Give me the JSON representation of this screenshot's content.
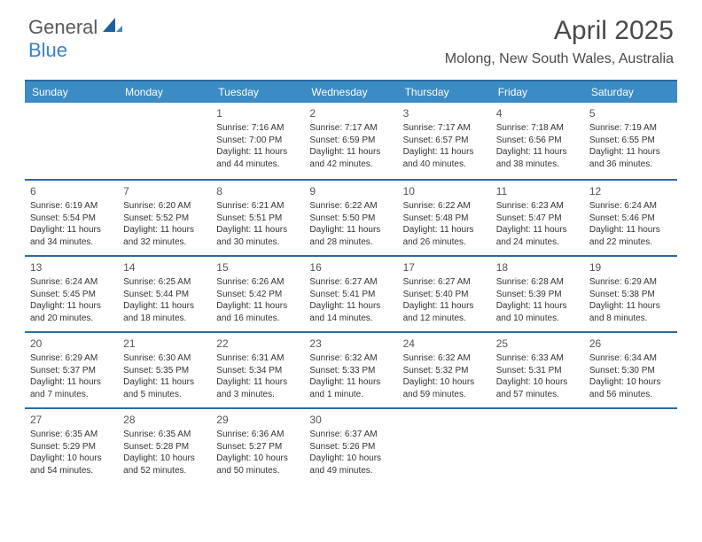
{
  "brand": {
    "part1": "General",
    "part2": "Blue"
  },
  "title": "April 2025",
  "location": "Molong, New South Wales, Australia",
  "colors": {
    "header_bg": "#3b8bc4",
    "rule": "#2d6aa3",
    "brand_gray": "#5a5a5a",
    "brand_blue": "#3b82c4",
    "text": "#333333"
  },
  "fonts": {
    "title_size": 30,
    "location_size": 16,
    "dow_size": 12,
    "daynum_size": 12,
    "body_size": 10
  },
  "days_of_week": [
    "Sunday",
    "Monday",
    "Tuesday",
    "Wednesday",
    "Thursday",
    "Friday",
    "Saturday"
  ],
  "weeks": [
    [
      null,
      null,
      {
        "n": "1",
        "sr": "Sunrise: 7:16 AM",
        "ss": "Sunset: 7:00 PM",
        "d1": "Daylight: 11 hours",
        "d2": "and 44 minutes."
      },
      {
        "n": "2",
        "sr": "Sunrise: 7:17 AM",
        "ss": "Sunset: 6:59 PM",
        "d1": "Daylight: 11 hours",
        "d2": "and 42 minutes."
      },
      {
        "n": "3",
        "sr": "Sunrise: 7:17 AM",
        "ss": "Sunset: 6:57 PM",
        "d1": "Daylight: 11 hours",
        "d2": "and 40 minutes."
      },
      {
        "n": "4",
        "sr": "Sunrise: 7:18 AM",
        "ss": "Sunset: 6:56 PM",
        "d1": "Daylight: 11 hours",
        "d2": "and 38 minutes."
      },
      {
        "n": "5",
        "sr": "Sunrise: 7:19 AM",
        "ss": "Sunset: 6:55 PM",
        "d1": "Daylight: 11 hours",
        "d2": "and 36 minutes."
      }
    ],
    [
      {
        "n": "6",
        "sr": "Sunrise: 6:19 AM",
        "ss": "Sunset: 5:54 PM",
        "d1": "Daylight: 11 hours",
        "d2": "and 34 minutes."
      },
      {
        "n": "7",
        "sr": "Sunrise: 6:20 AM",
        "ss": "Sunset: 5:52 PM",
        "d1": "Daylight: 11 hours",
        "d2": "and 32 minutes."
      },
      {
        "n": "8",
        "sr": "Sunrise: 6:21 AM",
        "ss": "Sunset: 5:51 PM",
        "d1": "Daylight: 11 hours",
        "d2": "and 30 minutes."
      },
      {
        "n": "9",
        "sr": "Sunrise: 6:22 AM",
        "ss": "Sunset: 5:50 PM",
        "d1": "Daylight: 11 hours",
        "d2": "and 28 minutes."
      },
      {
        "n": "10",
        "sr": "Sunrise: 6:22 AM",
        "ss": "Sunset: 5:48 PM",
        "d1": "Daylight: 11 hours",
        "d2": "and 26 minutes."
      },
      {
        "n": "11",
        "sr": "Sunrise: 6:23 AM",
        "ss": "Sunset: 5:47 PM",
        "d1": "Daylight: 11 hours",
        "d2": "and 24 minutes."
      },
      {
        "n": "12",
        "sr": "Sunrise: 6:24 AM",
        "ss": "Sunset: 5:46 PM",
        "d1": "Daylight: 11 hours",
        "d2": "and 22 minutes."
      }
    ],
    [
      {
        "n": "13",
        "sr": "Sunrise: 6:24 AM",
        "ss": "Sunset: 5:45 PM",
        "d1": "Daylight: 11 hours",
        "d2": "and 20 minutes."
      },
      {
        "n": "14",
        "sr": "Sunrise: 6:25 AM",
        "ss": "Sunset: 5:44 PM",
        "d1": "Daylight: 11 hours",
        "d2": "and 18 minutes."
      },
      {
        "n": "15",
        "sr": "Sunrise: 6:26 AM",
        "ss": "Sunset: 5:42 PM",
        "d1": "Daylight: 11 hours",
        "d2": "and 16 minutes."
      },
      {
        "n": "16",
        "sr": "Sunrise: 6:27 AM",
        "ss": "Sunset: 5:41 PM",
        "d1": "Daylight: 11 hours",
        "d2": "and 14 minutes."
      },
      {
        "n": "17",
        "sr": "Sunrise: 6:27 AM",
        "ss": "Sunset: 5:40 PM",
        "d1": "Daylight: 11 hours",
        "d2": "and 12 minutes."
      },
      {
        "n": "18",
        "sr": "Sunrise: 6:28 AM",
        "ss": "Sunset: 5:39 PM",
        "d1": "Daylight: 11 hours",
        "d2": "and 10 minutes."
      },
      {
        "n": "19",
        "sr": "Sunrise: 6:29 AM",
        "ss": "Sunset: 5:38 PM",
        "d1": "Daylight: 11 hours",
        "d2": "and 8 minutes."
      }
    ],
    [
      {
        "n": "20",
        "sr": "Sunrise: 6:29 AM",
        "ss": "Sunset: 5:37 PM",
        "d1": "Daylight: 11 hours",
        "d2": "and 7 minutes."
      },
      {
        "n": "21",
        "sr": "Sunrise: 6:30 AM",
        "ss": "Sunset: 5:35 PM",
        "d1": "Daylight: 11 hours",
        "d2": "and 5 minutes."
      },
      {
        "n": "22",
        "sr": "Sunrise: 6:31 AM",
        "ss": "Sunset: 5:34 PM",
        "d1": "Daylight: 11 hours",
        "d2": "and 3 minutes."
      },
      {
        "n": "23",
        "sr": "Sunrise: 6:32 AM",
        "ss": "Sunset: 5:33 PM",
        "d1": "Daylight: 11 hours",
        "d2": "and 1 minute."
      },
      {
        "n": "24",
        "sr": "Sunrise: 6:32 AM",
        "ss": "Sunset: 5:32 PM",
        "d1": "Daylight: 10 hours",
        "d2": "and 59 minutes."
      },
      {
        "n": "25",
        "sr": "Sunrise: 6:33 AM",
        "ss": "Sunset: 5:31 PM",
        "d1": "Daylight: 10 hours",
        "d2": "and 57 minutes."
      },
      {
        "n": "26",
        "sr": "Sunrise: 6:34 AM",
        "ss": "Sunset: 5:30 PM",
        "d1": "Daylight: 10 hours",
        "d2": "and 56 minutes."
      }
    ],
    [
      {
        "n": "27",
        "sr": "Sunrise: 6:35 AM",
        "ss": "Sunset: 5:29 PM",
        "d1": "Daylight: 10 hours",
        "d2": "and 54 minutes."
      },
      {
        "n": "28",
        "sr": "Sunrise: 6:35 AM",
        "ss": "Sunset: 5:28 PM",
        "d1": "Daylight: 10 hours",
        "d2": "and 52 minutes."
      },
      {
        "n": "29",
        "sr": "Sunrise: 6:36 AM",
        "ss": "Sunset: 5:27 PM",
        "d1": "Daylight: 10 hours",
        "d2": "and 50 minutes."
      },
      {
        "n": "30",
        "sr": "Sunrise: 6:37 AM",
        "ss": "Sunset: 5:26 PM",
        "d1": "Daylight: 10 hours",
        "d2": "and 49 minutes."
      },
      null,
      null,
      null
    ]
  ]
}
